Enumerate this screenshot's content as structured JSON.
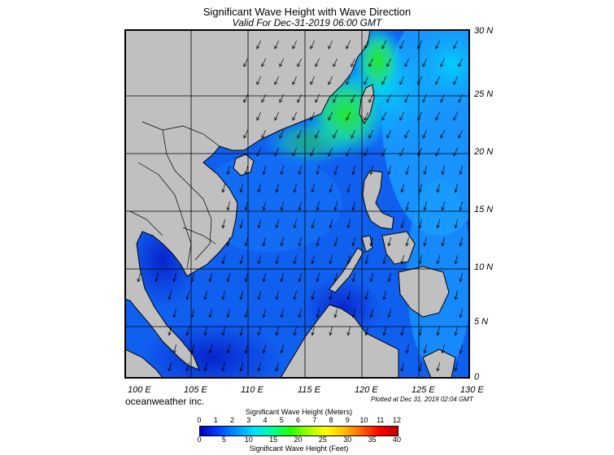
{
  "header": {
    "title": "Significant Wave Height with Wave Direction",
    "subtitle": "Valid For Dec-31-2019 06:00 GMT"
  },
  "map": {
    "lat_labels": [
      "30 N",
      "25 N",
      "20 N",
      "15 N",
      "10 N",
      "5 N",
      "0"
    ],
    "lon_labels": [
      "100 E",
      "105 E",
      "110 E",
      "115 E",
      "120 E",
      "125 E",
      "130 E"
    ],
    "colors": {
      "land": "#c0c0c0",
      "coast": "#000000",
      "deep_blue": "#0a2fd8",
      "mid_blue": "#1060f0",
      "light_blue": "#1a9cff",
      "cyan": "#00d8f0",
      "green": "#20e060",
      "arrow": "#000000"
    }
  },
  "footer": {
    "credit": "oceanweather inc.",
    "plotted": "Plotted at Dec 31, 2019 02:04 GMT"
  },
  "colorbar": {
    "top_title": "Significant Wave Height (Meters)",
    "bottom_title": "Significant Wave Height (Feet)",
    "meter_ticks": [
      "0",
      "1",
      "2",
      "3",
      "4",
      "5",
      "6",
      "7",
      "8",
      "9",
      "10",
      "11",
      "12"
    ],
    "feet_ticks": [
      "0",
      "5",
      "10",
      "15",
      "20",
      "25",
      "30",
      "35",
      "40"
    ],
    "gradient": [
      "#0000c0",
      "#0040ff",
      "#0090ff",
      "#00e0ff",
      "#00ffa0",
      "#20ff00",
      "#a0ff00",
      "#ffff00",
      "#ffc000",
      "#ff6000",
      "#ff0000",
      "#c00000"
    ]
  }
}
